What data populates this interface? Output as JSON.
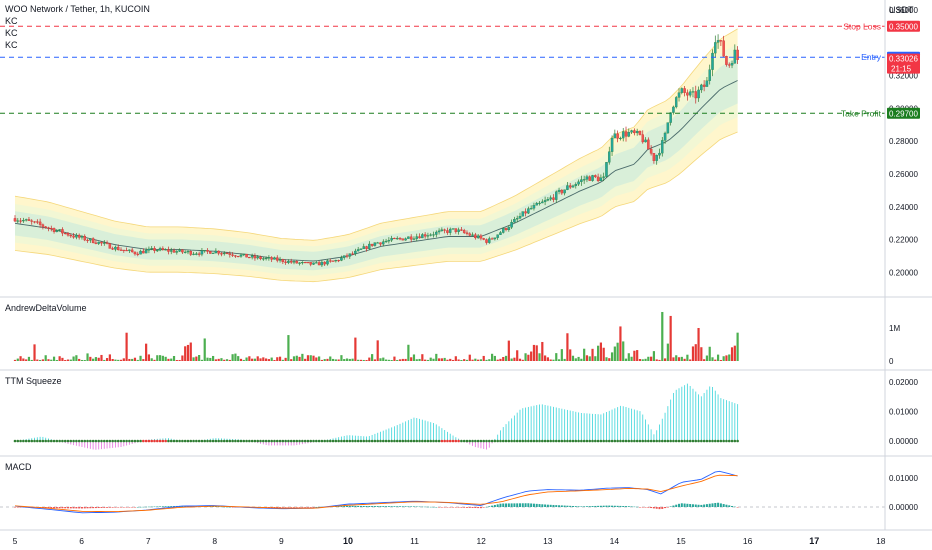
{
  "header": {
    "symbol_line": "WOO Network / Tether, 1h, KUCOIN",
    "indicators": [
      "KC",
      "KC",
      "KC"
    ]
  },
  "currency": "USDT",
  "price_pane": {
    "yaxis_ticks": [
      "0.36000",
      "0.32000",
      "0.30000",
      "0.28000",
      "0.26000",
      "0.24000",
      "0.22000",
      "0.20000"
    ],
    "ylim": [
      0.19,
      0.366
    ],
    "levels": [
      {
        "label": "Stop Loss",
        "value": 0.35,
        "value_label": "0.35000",
        "color": "#f23645"
      },
      {
        "label": "Entry",
        "value": 0.33114,
        "value_label": "0.33114",
        "color": "#2962ff"
      },
      {
        "label": "Take Profit",
        "value": 0.297,
        "value_label": "0.29700",
        "color": "#1b7d1f"
      }
    ],
    "last_price": {
      "value": 0.33026,
      "value_label": "0.33026",
      "countdown": "21:15",
      "color": "#f23645"
    }
  },
  "delta_pane": {
    "title": "AndrewDeltaVolume",
    "yaxis_ticks": [
      "1M",
      "0"
    ]
  },
  "ttm_pane": {
    "title": "TTM Squeeze",
    "yaxis_ticks": [
      "0.02000",
      "0.01000",
      "0.00000"
    ]
  },
  "macd_pane": {
    "title": "MACD",
    "yaxis_ticks": [
      "0.01000",
      "0.00000"
    ]
  },
  "xaxis": {
    "labels": [
      "5",
      "6",
      "7",
      "8",
      "9",
      "10",
      "11",
      "12",
      "13",
      "14",
      "15",
      "16",
      "17",
      "18"
    ],
    "bold": [
      "10",
      "17"
    ]
  },
  "chart_data": {
    "type": "candlestick",
    "title": "WOO Network / Tether, 1h, KUCOIN",
    "x_unit": "day of month",
    "x_domain": [
      5,
      18
    ],
    "midline": [
      [
        5.0,
        0.23
      ],
      [
        5.5,
        0.227
      ],
      [
        6.0,
        0.222
      ],
      [
        6.5,
        0.217
      ],
      [
        7.0,
        0.214
      ],
      [
        7.5,
        0.214
      ],
      [
        8.0,
        0.213
      ],
      [
        8.5,
        0.211
      ],
      [
        9.0,
        0.208
      ],
      [
        9.5,
        0.207
      ],
      [
        10.0,
        0.21
      ],
      [
        10.5,
        0.216
      ],
      [
        11.0,
        0.219
      ],
      [
        11.5,
        0.222
      ],
      [
        12.0,
        0.222
      ],
      [
        12.5,
        0.23
      ],
      [
        13.0,
        0.24
      ],
      [
        13.5,
        0.25
      ],
      [
        13.8,
        0.255
      ],
      [
        14.0,
        0.262
      ],
      [
        14.3,
        0.266
      ],
      [
        14.5,
        0.275
      ],
      [
        14.8,
        0.28
      ],
      [
        15.0,
        0.287
      ],
      [
        15.3,
        0.3
      ],
      [
        15.6,
        0.312
      ],
      [
        15.85,
        0.317
      ]
    ],
    "close": [
      [
        5.0,
        0.233
      ],
      [
        5.3,
        0.23
      ],
      [
        5.6,
        0.226
      ],
      [
        5.9,
        0.222
      ],
      [
        6.2,
        0.219
      ],
      [
        6.5,
        0.215
      ],
      [
        6.8,
        0.212
      ],
      [
        7.1,
        0.214
      ],
      [
        7.4,
        0.213
      ],
      [
        7.7,
        0.212
      ],
      [
        8.0,
        0.213
      ],
      [
        8.3,
        0.211
      ],
      [
        8.6,
        0.209
      ],
      [
        8.9,
        0.208
      ],
      [
        9.2,
        0.206
      ],
      [
        9.5,
        0.205
      ],
      [
        9.8,
        0.207
      ],
      [
        10.1,
        0.212
      ],
      [
        10.4,
        0.218
      ],
      [
        10.7,
        0.22
      ],
      [
        11.0,
        0.222
      ],
      [
        11.3,
        0.224
      ],
      [
        11.6,
        0.226
      ],
      [
        11.9,
        0.222
      ],
      [
        12.1,
        0.219
      ],
      [
        12.4,
        0.228
      ],
      [
        12.7,
        0.238
      ],
      [
        13.0,
        0.244
      ],
      [
        13.3,
        0.252
      ],
      [
        13.6,
        0.258
      ],
      [
        13.85,
        0.257
      ],
      [
        13.95,
        0.283
      ],
      [
        14.2,
        0.285
      ],
      [
        14.4,
        0.283
      ],
      [
        14.6,
        0.269
      ],
      [
        14.75,
        0.281
      ],
      [
        14.85,
        0.301
      ],
      [
        15.0,
        0.31
      ],
      [
        15.2,
        0.307
      ],
      [
        15.4,
        0.316
      ],
      [
        15.5,
        0.345
      ],
      [
        15.6,
        0.338
      ],
      [
        15.7,
        0.325
      ],
      [
        15.8,
        0.334
      ],
      [
        15.85,
        0.33
      ]
    ],
    "delta_volume_max_units": "1M = 1,000,000",
    "ttm_squeeze_hist": [
      [
        5.0,
        0.0
      ],
      [
        5.4,
        0.0015
      ],
      [
        5.8,
        -0.001
      ],
      [
        6.2,
        -0.003
      ],
      [
        6.6,
        -0.002
      ],
      [
        7.0,
        0.0005
      ],
      [
        7.3,
        0.001
      ],
      [
        7.6,
        -0.0005
      ],
      [
        8.0,
        0.001
      ],
      [
        8.4,
        0.0005
      ],
      [
        8.8,
        -0.0015
      ],
      [
        9.2,
        -0.0015
      ],
      [
        9.6,
        0.0
      ],
      [
        10.0,
        0.002
      ],
      [
        10.3,
        0.0015
      ],
      [
        10.7,
        0.005
      ],
      [
        11.0,
        0.008
      ],
      [
        11.3,
        0.006
      ],
      [
        11.6,
        0.0015
      ],
      [
        11.9,
        -0.002
      ],
      [
        12.1,
        -0.003
      ],
      [
        12.3,
        0.004
      ],
      [
        12.6,
        0.011
      ],
      [
        12.9,
        0.0125
      ],
      [
        13.2,
        0.011
      ],
      [
        13.5,
        0.0095
      ],
      [
        13.8,
        0.009
      ],
      [
        14.1,
        0.012
      ],
      [
        14.4,
        0.01
      ],
      [
        14.6,
        0.002
      ],
      [
        14.75,
        0.009
      ],
      [
        14.9,
        0.017
      ],
      [
        15.1,
        0.0195
      ],
      [
        15.3,
        0.015
      ],
      [
        15.45,
        0.019
      ],
      [
        15.6,
        0.0145
      ],
      [
        15.85,
        0.0125
      ]
    ],
    "macd": [
      [
        5.0,
        0.0003
      ],
      [
        5.5,
        -0.0008
      ],
      [
        6.0,
        -0.002
      ],
      [
        6.5,
        -0.0018
      ],
      [
        7.0,
        -0.001
      ],
      [
        7.5,
        0.0003
      ],
      [
        8.0,
        0.0005
      ],
      [
        8.5,
        -0.0002
      ],
      [
        9.0,
        -0.0006
      ],
      [
        9.5,
        -0.0004
      ],
      [
        10.0,
        0.001
      ],
      [
        10.5,
        0.0015
      ],
      [
        11.0,
        0.002
      ],
      [
        11.5,
        0.0015
      ],
      [
        12.0,
        0.0005
      ],
      [
        12.3,
        0.003
      ],
      [
        12.7,
        0.0055
      ],
      [
        13.0,
        0.006
      ],
      [
        13.5,
        0.0058
      ],
      [
        13.9,
        0.0065
      ],
      [
        14.2,
        0.0067
      ],
      [
        14.5,
        0.006
      ],
      [
        14.7,
        0.0045
      ],
      [
        15.0,
        0.0085
      ],
      [
        15.3,
        0.0095
      ],
      [
        15.55,
        0.0125
      ],
      [
        15.85,
        0.0107
      ]
    ],
    "macd_signal": [
      [
        5.0,
        0.0004
      ],
      [
        5.5,
        -0.0004
      ],
      [
        6.0,
        -0.0015
      ],
      [
        6.5,
        -0.0016
      ],
      [
        7.0,
        -0.0011
      ],
      [
        7.5,
        -0.0001
      ],
      [
        8.0,
        0.0003
      ],
      [
        8.5,
        0.0
      ],
      [
        9.0,
        -0.0004
      ],
      [
        9.5,
        -0.0004
      ],
      [
        10.0,
        0.0006
      ],
      [
        10.5,
        0.0012
      ],
      [
        11.0,
        0.0018
      ],
      [
        11.5,
        0.0016
      ],
      [
        12.0,
        0.0009
      ],
      [
        12.3,
        0.0018
      ],
      [
        12.7,
        0.0042
      ],
      [
        13.0,
        0.0052
      ],
      [
        13.5,
        0.0056
      ],
      [
        13.9,
        0.006
      ],
      [
        14.2,
        0.0064
      ],
      [
        14.5,
        0.0062
      ],
      [
        14.7,
        0.0053
      ],
      [
        15.0,
        0.0072
      ],
      [
        15.3,
        0.0088
      ],
      [
        15.55,
        0.011
      ],
      [
        15.85,
        0.0108
      ]
    ]
  }
}
